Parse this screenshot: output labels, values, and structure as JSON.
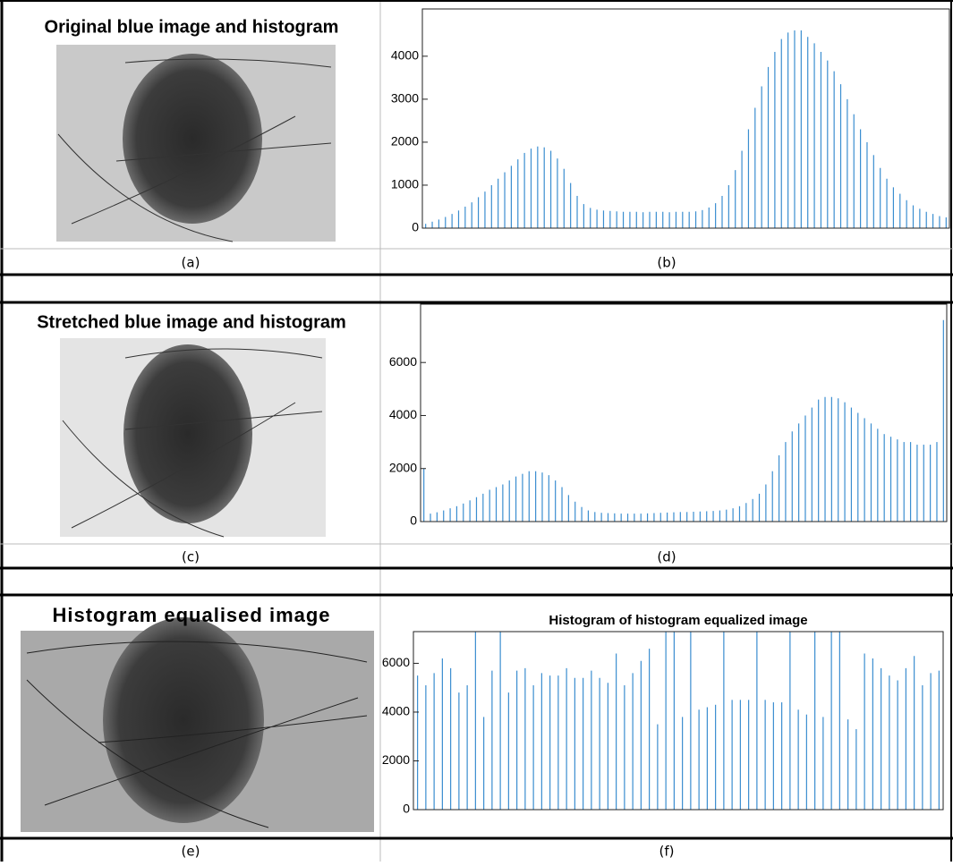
{
  "images": [
    {
      "title": "Original blue image and histogram",
      "caption": "(a)"
    },
    {
      "title": "Stretched blue image and histogram",
      "caption": "(c)"
    },
    {
      "title": "Histogram equalised image",
      "caption": "(e)"
    }
  ],
  "chart_data": [
    {
      "type": "histogram",
      "caption": "(b)",
      "color": "#3b8ed0",
      "ylim": [
        0,
        5100
      ],
      "yticks": [
        0,
        1000,
        2000,
        3000,
        4000
      ],
      "values": [
        100,
        150,
        200,
        260,
        330,
        410,
        500,
        600,
        720,
        850,
        1000,
        1150,
        1300,
        1450,
        1600,
        1750,
        1850,
        1900,
        1880,
        1800,
        1620,
        1380,
        1050,
        750,
        560,
        470,
        430,
        410,
        400,
        390,
        380,
        380,
        380,
        370,
        380,
        380,
        380,
        370,
        380,
        380,
        380,
        390,
        420,
        480,
        580,
        750,
        1000,
        1350,
        1800,
        2300,
        2800,
        3300,
        3750,
        4100,
        4400,
        4550,
        4600,
        4600,
        4450,
        4300,
        4100,
        3900,
        3650,
        3350,
        3000,
        2650,
        2300,
        2000,
        1700,
        1400,
        1150,
        950,
        800,
        650,
        530,
        450,
        380,
        330,
        280,
        250
      ]
    },
    {
      "type": "histogram",
      "caption": "(d)",
      "color": "#3b8ed0",
      "ylim": [
        0,
        8200
      ],
      "yticks": [
        0,
        2000,
        4000,
        6000
      ],
      "values": [
        2000,
        300,
        350,
        420,
        500,
        580,
        680,
        800,
        920,
        1050,
        1200,
        1300,
        1400,
        1550,
        1700,
        1800,
        1900,
        1900,
        1850,
        1750,
        1550,
        1300,
        1000,
        750,
        550,
        420,
        360,
        330,
        320,
        310,
        300,
        300,
        300,
        300,
        310,
        320,
        330,
        340,
        350,
        360,
        360,
        370,
        380,
        390,
        400,
        420,
        450,
        500,
        580,
        700,
        850,
        1050,
        1400,
        1900,
        2500,
        3000,
        3400,
        3700,
        4000,
        4300,
        4600,
        4700,
        4700,
        4650,
        4500,
        4300,
        4100,
        3900,
        3700,
        3500,
        3300,
        3200,
        3100,
        3000,
        3000,
        2900,
        2900,
        2900,
        3000,
        7600
      ]
    },
    {
      "type": "histogram",
      "caption": "(f)",
      "title": "Histogram of histogram equalized image",
      "color": "#3b8ed0",
      "ylim": [
        0,
        7300
      ],
      "yticks": [
        0,
        2000,
        4000,
        6000
      ],
      "values": [
        5500,
        5100,
        5600,
        6200,
        5800,
        4800,
        5100,
        7300,
        3800,
        5700,
        7300,
        4800,
        5700,
        5800,
        5100,
        5600,
        5500,
        5500,
        5800,
        5400,
        5400,
        5700,
        5400,
        5200,
        6400,
        5100,
        5600,
        6100,
        6600,
        3500,
        7300,
        7300,
        3800,
        7300,
        4100,
        4200,
        4300,
        7300,
        4500,
        4500,
        4500,
        7300,
        4500,
        4400,
        4400,
        7300,
        4100,
        3900,
        7300,
        3800,
        7300,
        7300,
        3700,
        3300,
        6400,
        6200,
        5800,
        5500,
        5300,
        5800,
        6300,
        5100,
        5600,
        5700
      ]
    }
  ]
}
